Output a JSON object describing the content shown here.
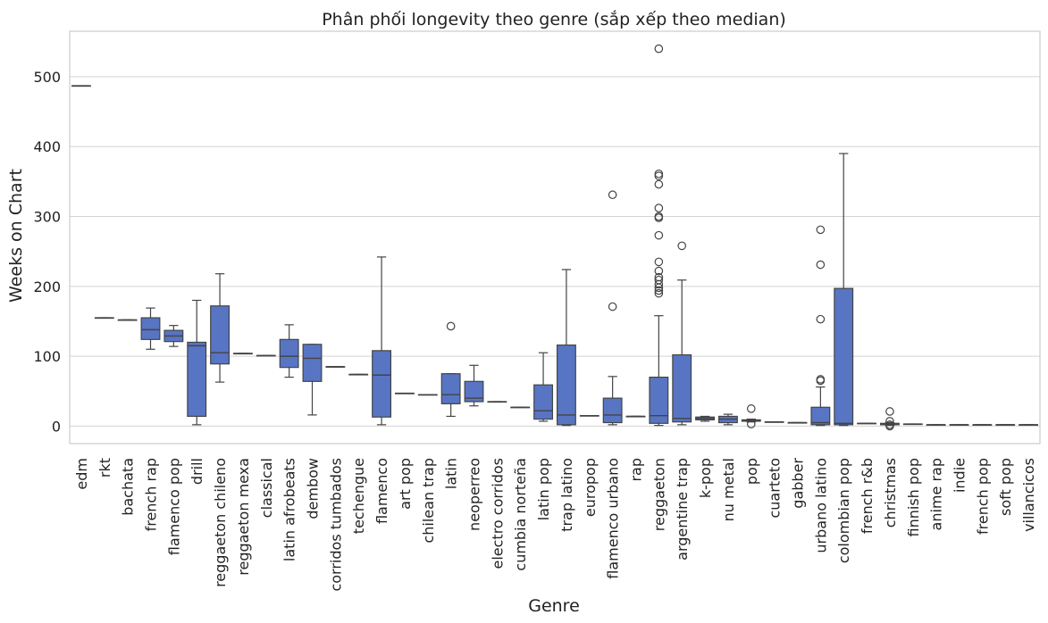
{
  "chart_data": {
    "type": "box",
    "title": "Phân phối longevity theo genre (sắp xếp theo median)",
    "xlabel": "Genre",
    "ylabel": "Weeks on Chart",
    "ylim": [
      -25,
      565
    ],
    "yticks": [
      0,
      100,
      200,
      300,
      400,
      500
    ],
    "grid": "horizontal",
    "box_color": "#5875c4",
    "line_color": "#444444",
    "categories": [
      "edm",
      "rkt",
      "bachata",
      "french rap",
      "flamenco pop",
      "drill",
      "reggaeton chileno",
      "reggaeton mexa",
      "classical",
      "latin afrobeats",
      "dembow",
      "corridos tumbados",
      "techengue",
      "flamenco",
      "art pop",
      "chilean trap",
      "latin",
      "neoperreo",
      "electro corridos",
      "cumbia norteña",
      "latin pop",
      "trap latino",
      "europop",
      "flamenco urbano",
      "rap",
      "reggaeton",
      "argentine trap",
      "k-pop",
      "nu metal",
      "pop",
      "cuarteto",
      "gabber",
      "urbano latino",
      "colombian pop",
      "french r&b",
      "christmas",
      "finnish pop",
      "anime rap",
      "indie",
      "french pop",
      "soft pop",
      "villancicos"
    ],
    "boxes": [
      {
        "genre": "edm",
        "min": 487,
        "q1": 487,
        "median": 487,
        "q3": 487,
        "max": 487,
        "outliers": []
      },
      {
        "genre": "rkt",
        "min": 155,
        "q1": 155,
        "median": 155,
        "q3": 155,
        "max": 155,
        "outliers": []
      },
      {
        "genre": "bachata",
        "min": 152,
        "q1": 152,
        "median": 152,
        "q3": 152,
        "max": 152,
        "outliers": []
      },
      {
        "genre": "french rap",
        "min": 110,
        "q1": 124,
        "median": 138,
        "q3": 155,
        "max": 169,
        "outliers": []
      },
      {
        "genre": "flamenco pop",
        "min": 114,
        "q1": 121,
        "median": 129,
        "q3": 137,
        "max": 144,
        "outliers": []
      },
      {
        "genre": "drill",
        "min": 2,
        "q1": 14,
        "median": 115,
        "q3": 120,
        "max": 180,
        "outliers": []
      },
      {
        "genre": "reggaeton chileno",
        "min": 63,
        "q1": 89,
        "median": 105,
        "q3": 172,
        "max": 218,
        "outliers": []
      },
      {
        "genre": "reggaeton mexa",
        "min": 104,
        "q1": 104,
        "median": 104,
        "q3": 104,
        "max": 104,
        "outliers": []
      },
      {
        "genre": "classical",
        "min": 101,
        "q1": 101,
        "median": 101,
        "q3": 101,
        "max": 101,
        "outliers": []
      },
      {
        "genre": "latin afrobeats",
        "min": 70,
        "q1": 84,
        "median": 100,
        "q3": 124,
        "max": 145,
        "outliers": []
      },
      {
        "genre": "dembow",
        "min": 16,
        "q1": 64,
        "median": 97,
        "q3": 117,
        "max": 117,
        "outliers": []
      },
      {
        "genre": "corridos tumbados",
        "min": 85,
        "q1": 85,
        "median": 85,
        "q3": 85,
        "max": 85,
        "outliers": []
      },
      {
        "genre": "techengue",
        "min": 74,
        "q1": 74,
        "median": 74,
        "q3": 74,
        "max": 74,
        "outliers": []
      },
      {
        "genre": "flamenco",
        "min": 2,
        "q1": 13,
        "median": 73,
        "q3": 108,
        "max": 242,
        "outliers": []
      },
      {
        "genre": "art pop",
        "min": 47,
        "q1": 47,
        "median": 47,
        "q3": 47,
        "max": 47,
        "outliers": []
      },
      {
        "genre": "chilean trap",
        "min": 45,
        "q1": 45,
        "median": 45,
        "q3": 45,
        "max": 45,
        "outliers": []
      },
      {
        "genre": "latin",
        "min": 14,
        "q1": 32,
        "median": 45,
        "q3": 75,
        "max": 75,
        "outliers": [
          143
        ]
      },
      {
        "genre": "neoperreo",
        "min": 29,
        "q1": 35,
        "median": 40,
        "q3": 64,
        "max": 87,
        "outliers": []
      },
      {
        "genre": "electro corridos",
        "min": 35,
        "q1": 35,
        "median": 35,
        "q3": 35,
        "max": 35,
        "outliers": []
      },
      {
        "genre": "cumbia norteña",
        "min": 27,
        "q1": 27,
        "median": 27,
        "q3": 27,
        "max": 27,
        "outliers": []
      },
      {
        "genre": "latin pop",
        "min": 7,
        "q1": 10,
        "median": 22,
        "q3": 59,
        "max": 105,
        "outliers": []
      },
      {
        "genre": "trap latino",
        "min": 1,
        "q1": 2,
        "median": 16,
        "q3": 116,
        "max": 224,
        "outliers": []
      },
      {
        "genre": "europop",
        "min": 15,
        "q1": 15,
        "median": 15,
        "q3": 15,
        "max": 15,
        "outliers": []
      },
      {
        "genre": "flamenco urbano",
        "min": 2,
        "q1": 5,
        "median": 16,
        "q3": 40,
        "max": 71,
        "outliers": [
          171,
          331
        ]
      },
      {
        "genre": "rap",
        "min": 14,
        "q1": 14,
        "median": 14,
        "q3": 14,
        "max": 14,
        "outliers": []
      },
      {
        "genre": "reggaeton",
        "min": 1,
        "q1": 4,
        "median": 15,
        "q3": 70,
        "max": 158,
        "outliers": [
          190,
          194,
          198,
          203,
          209,
          213,
          222,
          235,
          273,
          298,
          300,
          312,
          346,
          358,
          361,
          540
        ]
      },
      {
        "genre": "argentine trap",
        "min": 2,
        "q1": 6,
        "median": 11,
        "q3": 102,
        "max": 209,
        "outliers": [
          258
        ]
      },
      {
        "genre": "k-pop",
        "min": 7,
        "q1": 9,
        "median": 11,
        "q3": 13,
        "max": 14,
        "outliers": []
      },
      {
        "genre": "nu metal",
        "min": 2,
        "q1": 5,
        "median": 10,
        "q3": 14,
        "max": 17,
        "outliers": []
      },
      {
        "genre": "pop",
        "min": 6,
        "q1": 7,
        "median": 8,
        "q3": 9,
        "max": 10,
        "outliers": [
          3,
          25
        ]
      },
      {
        "genre": "cuarteto",
        "min": 6,
        "q1": 6,
        "median": 6,
        "q3": 6,
        "max": 6,
        "outliers": []
      },
      {
        "genre": "gabber",
        "min": 5,
        "q1": 5,
        "median": 5,
        "q3": 5,
        "max": 5,
        "outliers": []
      },
      {
        "genre": "urbano latino",
        "min": 1,
        "q1": 2,
        "median": 5,
        "q3": 27,
        "max": 56,
        "outliers": [
          65,
          67,
          153,
          231,
          281
        ]
      },
      {
        "genre": "colombian pop",
        "min": 1,
        "q1": 2,
        "median": 4,
        "q3": 197,
        "max": 390,
        "outliers": []
      },
      {
        "genre": "french r&b",
        "min": 4,
        "q1": 4,
        "median": 4,
        "q3": 4,
        "max": 4,
        "outliers": []
      },
      {
        "genre": "christmas",
        "min": 1,
        "q1": 2,
        "median": 3,
        "q3": 4,
        "max": 5,
        "outliers": [
          0,
          2,
          7,
          21
        ]
      },
      {
        "genre": "finnish pop",
        "min": 3,
        "q1": 3,
        "median": 3,
        "q3": 3,
        "max": 3,
        "outliers": []
      },
      {
        "genre": "anime rap",
        "min": 2,
        "q1": 2,
        "median": 2,
        "q3": 2,
        "max": 2,
        "outliers": []
      },
      {
        "genre": "indie",
        "min": 2,
        "q1": 2,
        "median": 2,
        "q3": 2,
        "max": 2,
        "outliers": []
      },
      {
        "genre": "french pop",
        "min": 2,
        "q1": 2,
        "median": 2,
        "q3": 2,
        "max": 2,
        "outliers": []
      },
      {
        "genre": "soft pop",
        "min": 2,
        "q1": 2,
        "median": 2,
        "q3": 2,
        "max": 2,
        "outliers": []
      },
      {
        "genre": "villancicos",
        "min": 2,
        "q1": 2,
        "median": 2,
        "q3": 2,
        "max": 2,
        "outliers": []
      }
    ]
  }
}
